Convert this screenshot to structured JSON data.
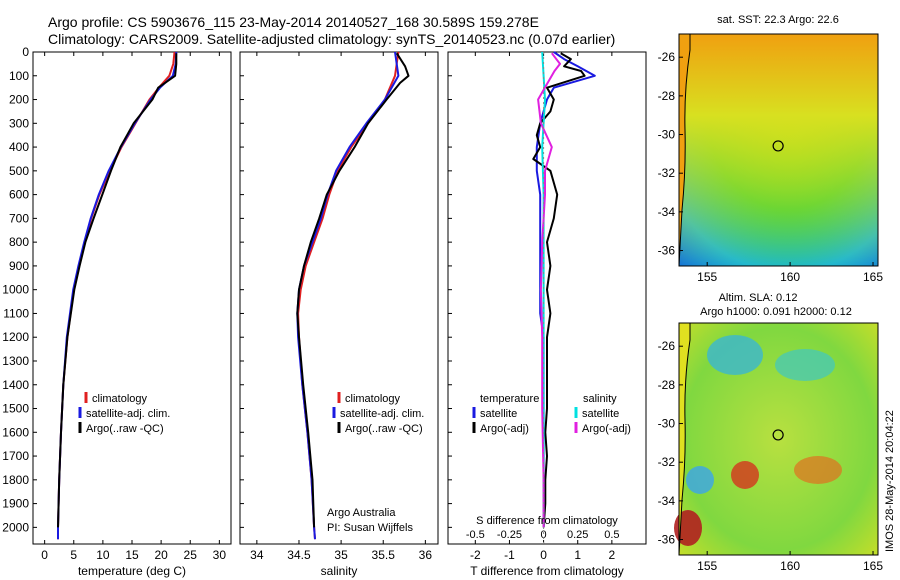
{
  "header": {
    "line1": "Argo profile: CS 5903676_115 23-May-2014 20140527_168 30.589S 159.278E",
    "line2": "Climatology: CARS2009. Satellite-adjusted climatology: synTS_20140523.nc (0.07d earlier)"
  },
  "colors": {
    "climatology": "#e02020",
    "satellite": "#1a1ae0",
    "argo": "#000000",
    "sat_salinity": "#00e0e0",
    "argo_salinity": "#e020e0"
  },
  "chart_data": [
    {
      "type": "line",
      "id": "temperature",
      "xlabel": "temperature (deg C)",
      "ylabel": "",
      "xlim": [
        -2,
        32
      ],
      "ylim": [
        2070,
        0
      ],
      "xticks": [
        0,
        5,
        10,
        15,
        20,
        25,
        30
      ],
      "yticks": [
        0,
        100,
        200,
        300,
        400,
        500,
        600,
        700,
        800,
        900,
        1000,
        1100,
        1200,
        1300,
        1400,
        1500,
        1600,
        1700,
        1800,
        1900,
        2000
      ],
      "legend": [
        "climatology",
        "satellite-adj. clim.",
        "Argo(..raw -QC)"
      ],
      "series": [
        {
          "name": "climatology",
          "color": "#e02020",
          "depth": [
            0,
            50,
            100,
            150,
            200,
            300,
            400,
            500,
            600,
            700,
            800,
            900,
            1000,
            1200,
            1400,
            1600,
            1800,
            2000,
            2050
          ],
          "values": [
            22.3,
            22.1,
            21.4,
            19.6,
            18.0,
            15.6,
            13.2,
            11.2,
            9.4,
            8.0,
            6.9,
            5.9,
            5.0,
            3.9,
            3.2,
            2.8,
            2.5,
            2.3,
            2.3
          ]
        },
        {
          "name": "satellite-adj. clim.",
          "color": "#1a1ae0",
          "depth": [
            0,
            50,
            100,
            150,
            200,
            300,
            400,
            500,
            600,
            700,
            800,
            900,
            1000,
            1200,
            1400,
            1600,
            1800,
            2000,
            2050
          ],
          "values": [
            22.6,
            22.5,
            22.0,
            19.8,
            18.2,
            15.5,
            13.1,
            11.0,
            9.3,
            7.9,
            6.8,
            5.8,
            4.9,
            3.8,
            3.2,
            2.8,
            2.5,
            2.3,
            2.3
          ]
        },
        {
          "name": "Argo(..raw -QC)",
          "color": "#000000",
          "depth": [
            5,
            50,
            100,
            150,
            200,
            300,
            400,
            500,
            600,
            700,
            800,
            900,
            1000,
            1200,
            1400,
            1600,
            1800,
            2000
          ],
          "values": [
            22.6,
            22.6,
            22.4,
            19.5,
            18.5,
            15.3,
            13.0,
            11.4,
            9.9,
            8.4,
            7.0,
            6.0,
            5.1,
            3.9,
            3.2,
            2.8,
            2.5,
            2.3
          ]
        }
      ]
    },
    {
      "type": "line",
      "id": "salinity",
      "xlabel": "salinity",
      "ylabel": "",
      "xlim": [
        33.8,
        36.15
      ],
      "ylim": [
        2070,
        0
      ],
      "xticks": [
        34,
        34.5,
        35,
        35.5,
        36
      ],
      "legend": [
        "climatology",
        "satellite-adj. clim.",
        "Argo(..raw -QC)"
      ],
      "annotation": [
        "Argo Australia",
        "PI: Susan Wijffels"
      ],
      "series": [
        {
          "name": "climatology",
          "color": "#e02020",
          "depth": [
            0,
            50,
            100,
            200,
            300,
            400,
            500,
            600,
            700,
            800,
            900,
            1000,
            1100,
            1200,
            1400,
            1600,
            1800,
            2000,
            2050
          ],
          "values": [
            35.68,
            35.66,
            35.64,
            35.52,
            35.32,
            35.12,
            34.96,
            34.86,
            34.78,
            34.68,
            34.58,
            34.52,
            34.49,
            34.5,
            34.54,
            34.6,
            34.65,
            34.68,
            34.69
          ]
        },
        {
          "name": "satellite-adj. clim.",
          "color": "#1a1ae0",
          "depth": [
            0,
            50,
            100,
            200,
            300,
            400,
            500,
            600,
            700,
            800,
            900,
            1000,
            1100,
            1200,
            1400,
            1600,
            1800,
            2000,
            2050
          ],
          "values": [
            35.64,
            35.66,
            35.68,
            35.52,
            35.3,
            35.1,
            34.94,
            34.84,
            34.76,
            34.66,
            34.56,
            34.5,
            34.48,
            34.49,
            34.54,
            34.6,
            34.65,
            34.68,
            34.69
          ]
        },
        {
          "name": "Argo(..raw -QC)",
          "color": "#000000",
          "depth": [
            5,
            60,
            100,
            130,
            200,
            300,
            400,
            500,
            600,
            700,
            800,
            900,
            1000,
            1100,
            1200,
            1400,
            1600,
            1800,
            2000
          ],
          "values": [
            35.66,
            35.76,
            35.8,
            35.7,
            35.54,
            35.32,
            35.16,
            34.98,
            34.83,
            34.74,
            34.64,
            34.56,
            34.5,
            34.48,
            34.5,
            34.55,
            34.61,
            34.66,
            34.68
          ]
        }
      ]
    },
    {
      "type": "line",
      "id": "difference",
      "xlabel": "T difference from climatology",
      "xlabel_top": "S difference from climatology",
      "xlim": [
        -2.8,
        3.0
      ],
      "ylim": [
        2070,
        0
      ],
      "xticks": [
        -2,
        -1,
        0,
        1,
        2
      ],
      "xticks_s": [
        -0.5,
        -0.25,
        0,
        0.25,
        0.5
      ],
      "legend_title_left": "temperature",
      "legend_title_right": "salinity",
      "legend": [
        "satellite",
        "Argo(-adj)",
        "satellite",
        "Argo(-adj)"
      ],
      "series": [
        {
          "name": "T satellite",
          "color": "#1a1ae0",
          "depth": [
            0,
            30,
            60,
            100,
            150,
            200,
            300,
            400,
            500,
            600,
            700,
            800,
            900,
            1000,
            1100,
            1200,
            1300,
            1400,
            1500,
            1800,
            2000
          ],
          "values": [
            0.3,
            0.6,
            1.0,
            1.5,
            0.3,
            0.1,
            -0.1,
            -0.2,
            -0.2,
            -0.1,
            -0.1,
            -0.1,
            -0.1,
            -0.1,
            -0.1,
            0,
            0,
            0,
            0,
            0,
            0
          ]
        },
        {
          "name": "T Argo(-adj)",
          "color": "#000000",
          "depth": [
            5,
            30,
            60,
            80,
            100,
            150,
            200,
            250,
            300,
            350,
            400,
            450,
            500,
            600,
            700,
            800,
            900,
            1000,
            1100,
            1200,
            1300,
            1400,
            1500,
            1600,
            1700,
            1800,
            1900,
            2000
          ],
          "values": [
            0.5,
            0.8,
            0.6,
            1.1,
            1.2,
            0.1,
            0.3,
            0.2,
            -0.1,
            -0.2,
            -0.1,
            -0.3,
            0.2,
            0.4,
            0.3,
            0.1,
            0.2,
            0.1,
            0.2,
            0.1,
            0.1,
            0.1,
            0.1,
            0.05,
            0.1,
            0.05,
            0.05,
            0
          ]
        },
        {
          "name": "S satellite",
          "color": "#00e0e0",
          "depth": [
            0,
            100,
            200,
            400,
            600,
            800,
            1000,
            1500,
            2000
          ],
          "values": [
            -0.01,
            0.0,
            0.01,
            -0.01,
            0.0,
            0.0,
            0.0,
            0.0,
            0.0
          ]
        },
        {
          "name": "S Argo(-adj)",
          "color": "#e020e0",
          "depth": [
            5,
            50,
            80,
            120,
            200,
            300,
            400,
            500,
            600,
            800,
            1000,
            1200,
            1500,
            1800,
            2000
          ],
          "values": [
            0.06,
            0.12,
            0.08,
            0.04,
            -0.04,
            -0.02,
            0.06,
            0.01,
            0.01,
            -0.01,
            -0.02,
            -0.01,
            -0.01,
            0,
            0
          ]
        }
      ]
    },
    {
      "type": "heatmap",
      "id": "sst-map",
      "title": "sat. SST: 22.3 Argo: 22.6",
      "xticks": [
        155,
        160,
        165
      ],
      "yticks": [
        -26,
        -28,
        -30,
        -32,
        -34,
        -36
      ],
      "xlim": [
        153.3,
        165.3
      ],
      "ylim": [
        -36.8,
        -24.8
      ],
      "argo_position": {
        "lon": 159.278,
        "lat": -30.589
      }
    },
    {
      "type": "heatmap",
      "id": "sla-map",
      "title_line1": "Altim. SLA: 0.12",
      "title_line2": "Argo h1000: 0.091 h2000: 0.12",
      "xticks": [
        155,
        160,
        165
      ],
      "yticks": [
        -26,
        -28,
        -30,
        -32,
        -34,
        -36
      ],
      "xlim": [
        153.3,
        165.3
      ],
      "ylim": [
        -36.8,
        -24.8
      ],
      "argo_position": {
        "lon": 159.278,
        "lat": -30.589
      }
    }
  ],
  "side_text": "IMOS 28-May-2014 20:04:22"
}
